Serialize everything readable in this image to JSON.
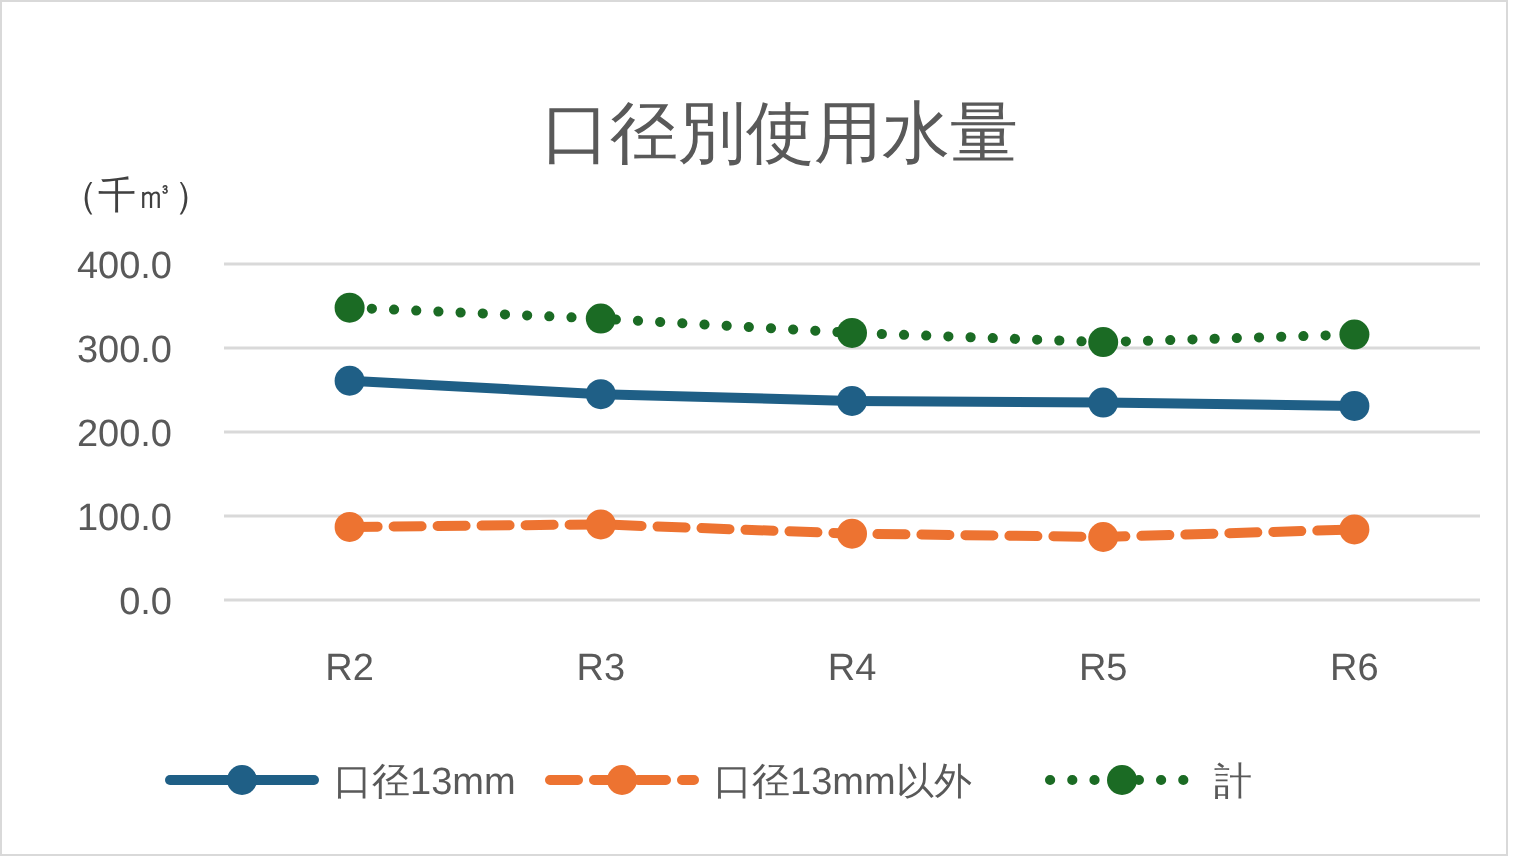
{
  "chart_data": {
    "type": "line",
    "title": "口径別使用水量",
    "ylabel": "（千㎥）",
    "categories": [
      "R2",
      "R3",
      "R4",
      "R5",
      "R6"
    ],
    "series": [
      {
        "name": "口径13mm",
        "color": "#1f5f86",
        "values": [
          261,
          245,
          237,
          235,
          231
        ],
        "line_style": "solid"
      },
      {
        "name": "口径13mm以外",
        "color": "#ed7331",
        "values": [
          87,
          90,
          79,
          75,
          84
        ],
        "line_style": "dashed"
      },
      {
        "name": "計",
        "color": "#1b6b24",
        "values": [
          348,
          335,
          318,
          307,
          316
        ],
        "line_style": "dotted"
      }
    ],
    "ylim": [
      0,
      400
    ],
    "yticks": [
      {
        "value": 0,
        "label": "0.0"
      },
      {
        "value": 100,
        "label": "100.0"
      },
      {
        "value": 200,
        "label": "200.0"
      },
      {
        "value": 300,
        "label": "300.0"
      },
      {
        "value": 400,
        "label": "400.0"
      }
    ],
    "grid": "y",
    "legend": "bottom",
    "marker": "circle"
  }
}
